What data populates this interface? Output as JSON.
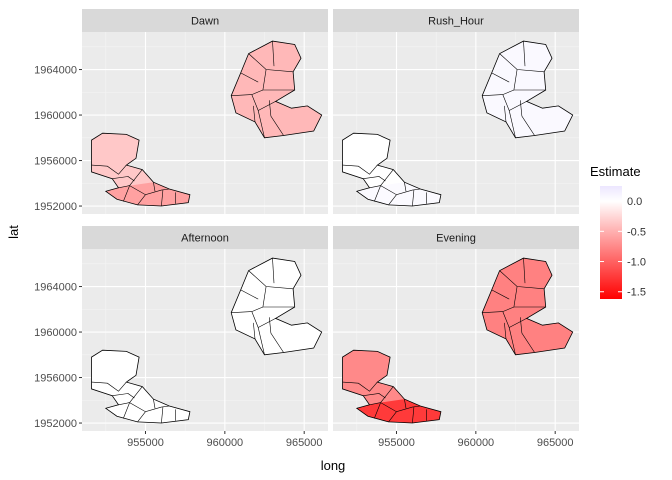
{
  "chart_data": {
    "type": "choropleth-facet",
    "xlabel": "long",
    "ylabel": "lat",
    "xlim": [
      951000,
      966500
    ],
    "ylim": [
      1951300,
      1967300
    ],
    "x_ticks": [
      955000,
      960000,
      965000
    ],
    "x_tick_labels": [
      "955000",
      "960000",
      "965000"
    ],
    "y_ticks": [
      1952000,
      1956000,
      1960000,
      1964000
    ],
    "y_tick_labels": [
      "1952000",
      "1956000",
      "1960000",
      "1964000"
    ],
    "grid": true,
    "legend": {
      "title": "Estimate",
      "placement": "right",
      "range": [
        -1.62,
        0.25
      ],
      "breaks": [
        0.0,
        -0.5,
        -1.0,
        -1.5
      ],
      "break_labels": [
        "0.0",
        "-0.5",
        "-1.0",
        "-1.5"
      ],
      "low_color": "#ff0000",
      "mid_color": "#ffffff",
      "high_color": "#ece6ff",
      "midpoint": 0
    },
    "facets": [
      {
        "name": "Dawn",
        "west_estimate": -0.35,
        "west_south_estimate": -0.6,
        "east_estimate": -0.45
      },
      {
        "name": "Rush_Hour",
        "west_estimate": 0.0,
        "west_south_estimate": 0.05,
        "east_estimate": 0.06
      },
      {
        "name": "Afternoon",
        "west_estimate": 0.0,
        "west_south_estimate": 0.0,
        "east_estimate": 0.0
      },
      {
        "name": "Evening",
        "west_estimate": -0.75,
        "west_south_estimate": -1.25,
        "east_estimate": -0.8
      }
    ]
  },
  "colors": {
    "panel_background": "#ebebeb",
    "strip_background": "#d9d9d9",
    "grid_major": "#ffffff",
    "region_outline": "#000000"
  }
}
